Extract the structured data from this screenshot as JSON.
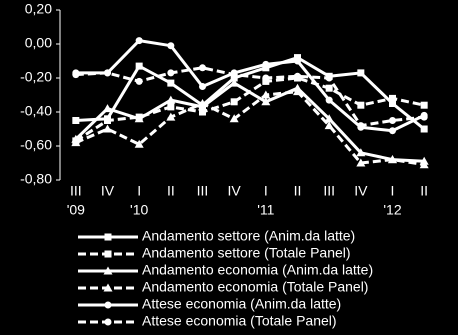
{
  "chart_data": {
    "type": "line",
    "categories": [
      "III",
      "IV",
      "I",
      "II",
      "III",
      "IV",
      "I",
      "II",
      "III",
      "IV",
      "I",
      "II"
    ],
    "year_labels": [
      "'09",
      null,
      "'10",
      null,
      null,
      null,
      "'11",
      null,
      null,
      null,
      "'12",
      null
    ],
    "ylim": [
      -0.8,
      0.2
    ],
    "yticks": [
      {
        "value": -0.8,
        "label": "-0,80"
      },
      {
        "value": -0.6,
        "label": "-0,60"
      },
      {
        "value": -0.4,
        "label": "-0,40"
      },
      {
        "value": -0.2,
        "label": "-0,20"
      },
      {
        "value": 0,
        "label": "0,00"
      },
      {
        "value": 0.2,
        "label": "0,20"
      }
    ],
    "series": [
      {
        "name": "Andamento settore (Anim.da latte)",
        "color": "#ffffff",
        "marker": "square",
        "dashed": false,
        "values": [
          -0.45,
          -0.44,
          -0.13,
          -0.23,
          -0.36,
          -0.2,
          -0.14,
          -0.08,
          -0.19,
          -0.17,
          -0.35,
          -0.5
        ]
      },
      {
        "name": "Andamento settore (Totale Panel)",
        "color": "#ffffff",
        "marker": "square",
        "dashed": true,
        "values": [
          -0.57,
          -0.45,
          -0.43,
          -0.37,
          -0.4,
          -0.34,
          -0.22,
          -0.2,
          -0.26,
          -0.36,
          -0.32,
          -0.36
        ]
      },
      {
        "name": "Andamento economia (Anim.da latte)",
        "color": "#ffffff",
        "marker": "triangle",
        "dashed": false,
        "values": [
          -0.56,
          -0.38,
          -0.44,
          -0.33,
          -0.37,
          -0.23,
          -0.34,
          -0.26,
          -0.44,
          -0.64,
          -0.68,
          -0.69
        ]
      },
      {
        "name": "Andamento economia (Totale Panel)",
        "color": "#ffffff",
        "marker": "triangle",
        "dashed": true,
        "values": [
          -0.58,
          -0.5,
          -0.59,
          -0.43,
          -0.35,
          -0.44,
          -0.3,
          -0.28,
          -0.48,
          -0.7,
          -0.68,
          -0.71
        ]
      },
      {
        "name": "Attese economia (Anim.da latte)",
        "color": "#ffffff",
        "marker": "circle",
        "dashed": false,
        "values": [
          -0.17,
          -0.17,
          0.02,
          -0.01,
          -0.25,
          -0.17,
          -0.12,
          -0.1,
          -0.33,
          -0.49,
          -0.51,
          -0.42
        ]
      },
      {
        "name": "Attese economia (Totale Panel)",
        "color": "#ffffff",
        "marker": "circle",
        "dashed": true,
        "values": [
          -0.18,
          -0.17,
          -0.22,
          -0.17,
          -0.14,
          -0.18,
          -0.2,
          -0.19,
          -0.2,
          -0.48,
          -0.45,
          -0.43
        ]
      }
    ]
  }
}
